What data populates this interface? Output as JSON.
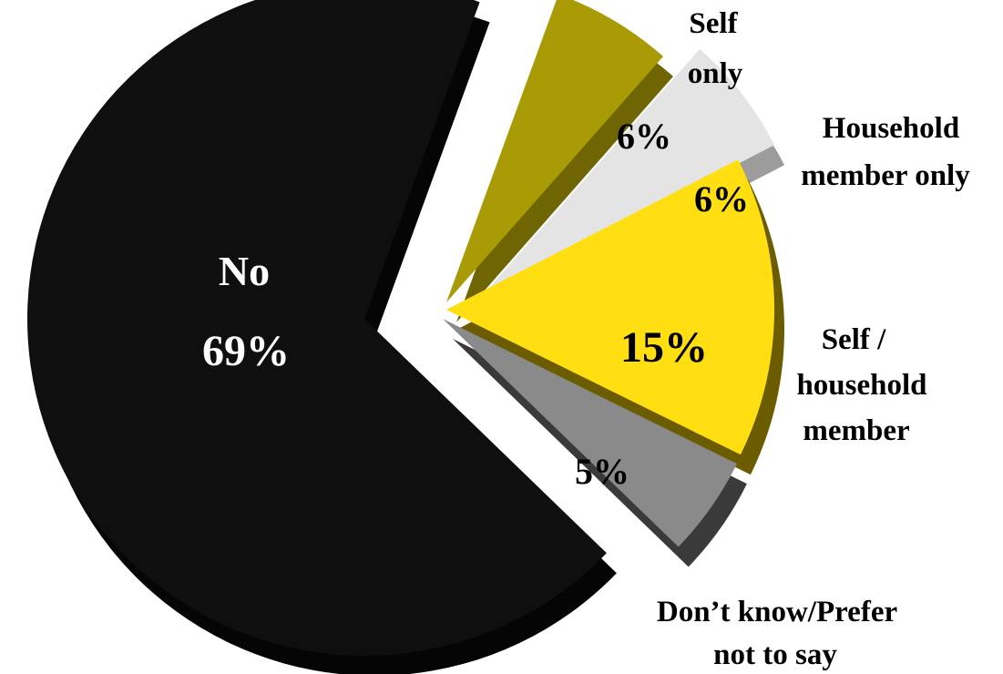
{
  "chart_data": {
    "type": "pie",
    "style": "3d-exploded",
    "slices": [
      {
        "label": "No",
        "value": 69,
        "value_label": "69%",
        "color": "#0f0f0f",
        "side_color": "#050505",
        "value_color": "#ffffff",
        "label_color": "#ffffff"
      },
      {
        "label": "Self only",
        "value": 6,
        "value_label": "6%",
        "color": "#a89b06",
        "side_color": "#6f6603",
        "value_color": "#000000",
        "label_color": "#000000"
      },
      {
        "label": "Household member only",
        "value": 6,
        "value_label": "6%",
        "color": "#e4e4e4",
        "side_color": "#9c9c9c",
        "value_color": "#000000",
        "label_color": "#000000"
      },
      {
        "label": "Self / household member",
        "value": 15,
        "value_label": "15%",
        "color": "#ffdf12",
        "side_color": "#6b5c00",
        "value_color": "#000000",
        "label_color": "#000000"
      },
      {
        "label": "Don’t know/Prefer not to say",
        "value": 5,
        "value_label": "5%",
        "color": "#8a8a8a",
        "side_color": "#3a3a3a",
        "value_color": "#000000",
        "label_color": "#000000"
      }
    ],
    "labels": {
      "no": "No",
      "self_only_line1": "Self",
      "self_only_line2": "only",
      "household_line1": "Household",
      "household_line2": "member only",
      "self_household_line1": "Self /",
      "self_household_line2": "household",
      "self_household_line3": "member",
      "dont_know_line1": "Don’t know/Prefer",
      "dont_know_line2": "not to say"
    }
  }
}
